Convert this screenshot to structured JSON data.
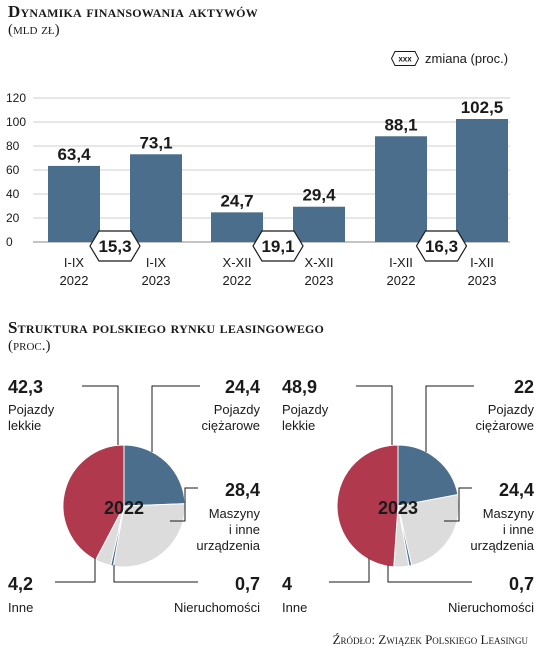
{
  "bar_section": {
    "title": "Dynamika finansowania aktywów",
    "subtitle": "(mld zł)",
    "legend": {
      "symbol_text": "xxx",
      "label": "zmiana (proc.)"
    }
  },
  "pie_section": {
    "title": "Struktura polskiego rynku leasingowego",
    "subtitle": "(proc.)"
  },
  "source": "Źródło: Związek Polskiego Leasingu",
  "colors": {
    "bar": "#4a6e8c",
    "heavy": "#4a6e8c",
    "light": "#b0394e",
    "machinery": "#dcdcdc",
    "other": "#dcdcdc",
    "realestate": "#4a6e8c",
    "grid": "#cfcfcf"
  },
  "chart_data": [
    {
      "type": "bar",
      "categories": [
        [
          "I-IX",
          "2022"
        ],
        [
          "I-IX",
          "2023"
        ],
        [
          "X-XII",
          "2022"
        ],
        [
          "X-XII",
          "2023"
        ],
        [
          "I-XII",
          "2022"
        ],
        [
          "I-XII",
          "2023"
        ]
      ],
      "values": [
        63.4,
        73.1,
        24.7,
        29.4,
        88.1,
        102.5
      ],
      "value_labels": [
        "63,4",
        "73,1",
        "24,7",
        "29,4",
        "88,1",
        "102,5"
      ],
      "changes": [
        {
          "between": [
            0,
            1
          ],
          "value": 15.3,
          "label": "15,3"
        },
        {
          "between": [
            2,
            3
          ],
          "value": 19.1,
          "label": "19,1"
        },
        {
          "between": [
            4,
            5
          ],
          "value": 16.3,
          "label": "16,3"
        }
      ],
      "yticks": [
        0,
        20,
        40,
        60,
        80,
        100,
        120
      ],
      "ylim": [
        0,
        120
      ],
      "grid": true
    },
    {
      "type": "pie",
      "center_label": "2022",
      "slices": [
        {
          "key": "heavy",
          "value": 24.4,
          "label": "24,4",
          "name": "Pojazdy ciężarowe"
        },
        {
          "key": "machinery",
          "value": 28.4,
          "label": "28,4",
          "name": "Maszyny i inne urządzenia"
        },
        {
          "key": "realestate",
          "value": 0.7,
          "label": "0,7",
          "name": "Nieruchomości"
        },
        {
          "key": "other",
          "value": 4.2,
          "label": "4,2",
          "name": "Inne"
        },
        {
          "key": "light",
          "value": 42.3,
          "label": "42,3",
          "name": "Pojazdy lekkie"
        }
      ]
    },
    {
      "type": "pie",
      "center_label": "2023",
      "slices": [
        {
          "key": "heavy",
          "value": 22,
          "label": "22",
          "name": "Pojazdy ciężarowe"
        },
        {
          "key": "machinery",
          "value": 24.4,
          "label": "24,4",
          "name": "Maszyny i inne urządzenia"
        },
        {
          "key": "realestate",
          "value": 0.7,
          "label": "0,7",
          "name": "Nieruchomości"
        },
        {
          "key": "other",
          "value": 4,
          "label": "4",
          "name": "Inne"
        },
        {
          "key": "light",
          "value": 48.9,
          "label": "48,9",
          "name": "Pojazdy lekkie"
        }
      ]
    }
  ]
}
